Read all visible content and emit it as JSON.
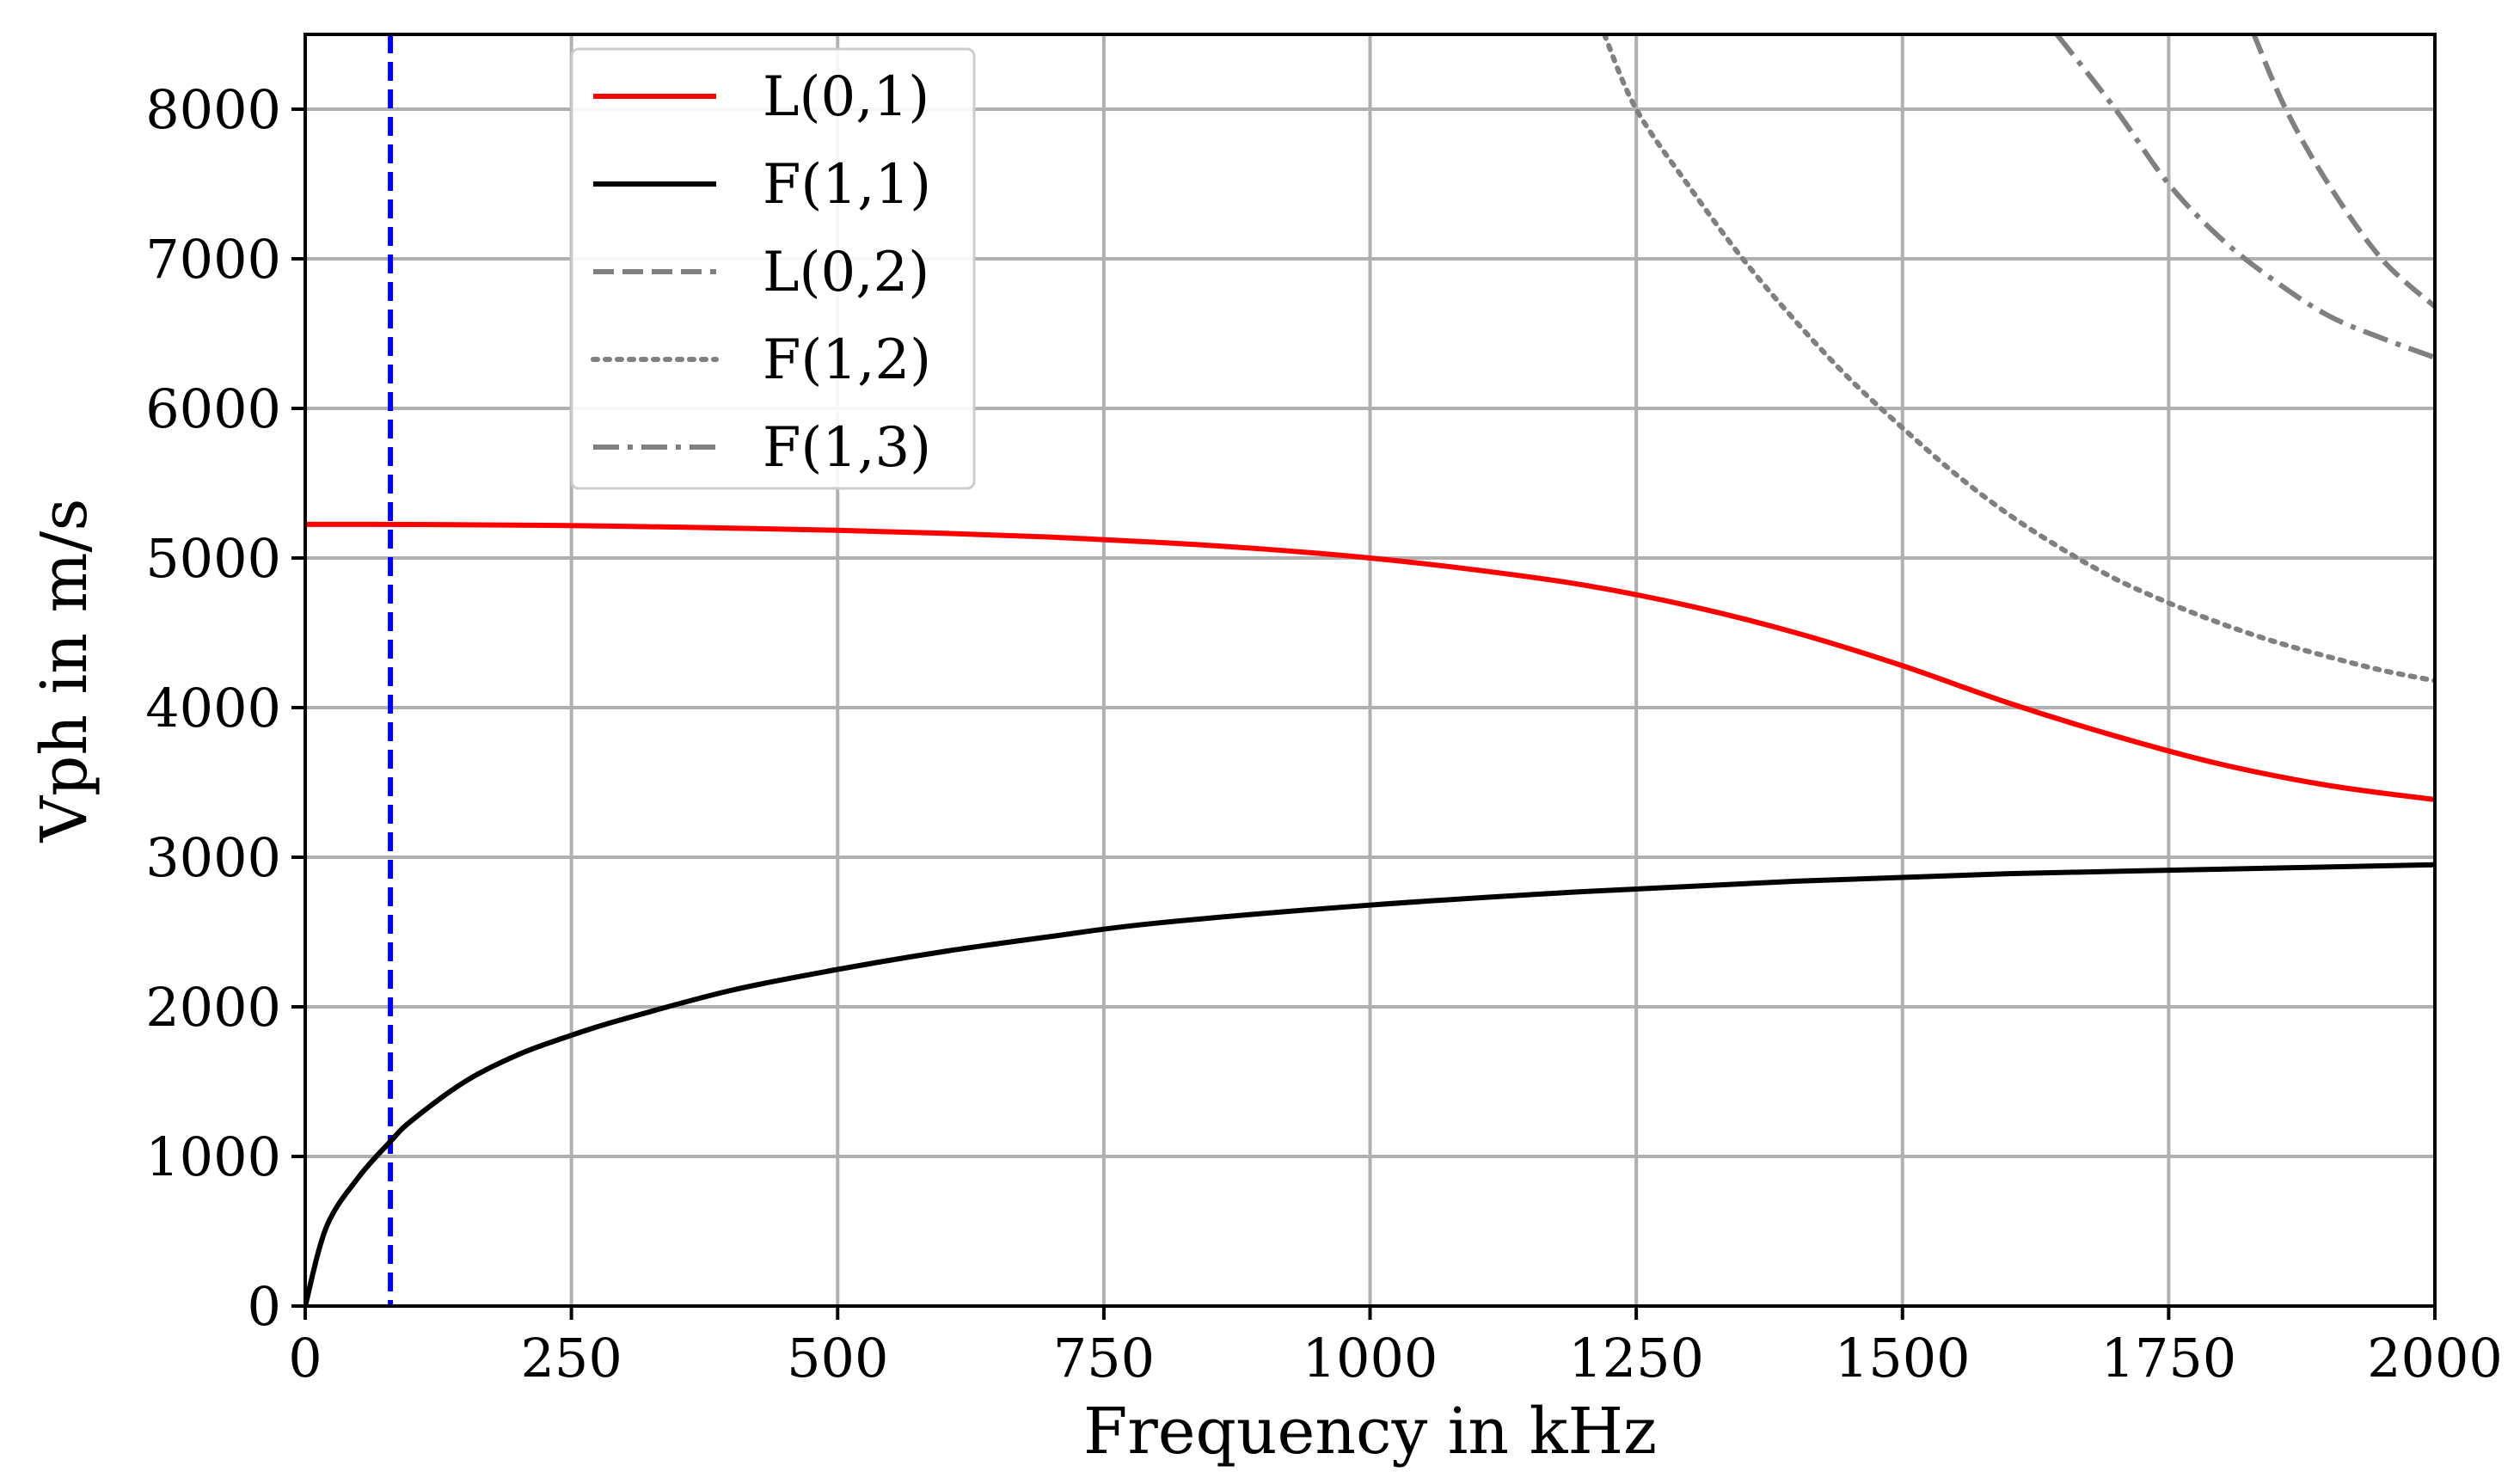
{
  "chart_data": {
    "type": "line",
    "title": "",
    "xlabel": "Frequency in kHz",
    "ylabel": "Vph in m/s",
    "xlim": [
      0,
      2000
    ],
    "ylim": [
      0,
      8500
    ],
    "xticks": [
      0,
      250,
      500,
      750,
      1000,
      1250,
      1500,
      1750,
      2000
    ],
    "yticks": [
      0,
      1000,
      2000,
      3000,
      4000,
      5000,
      6000,
      7000,
      8000
    ],
    "xtick_labels": [
      "0",
      "250",
      "500",
      "750",
      "1000",
      "1250",
      "1500",
      "1750",
      "2000"
    ],
    "ytick_labels": [
      "0",
      "1000",
      "2000",
      "3000",
      "4000",
      "5000",
      "6000",
      "7000",
      "8000"
    ],
    "grid": true,
    "legend_position": "top-left",
    "series": [
      {
        "name": "L(0,1)",
        "color": "#ff0000",
        "style": "solid",
        "x": [
          0,
          100,
          200,
          300,
          400,
          500,
          600,
          700,
          800,
          900,
          1000,
          1100,
          1200,
          1300,
          1400,
          1500,
          1600,
          1700,
          1800,
          1900,
          2000
        ],
        "y": [
          5225,
          5224,
          5220,
          5212,
          5200,
          5185,
          5165,
          5140,
          5105,
          5060,
          5000,
          4920,
          4820,
          4680,
          4500,
          4280,
          4030,
          3810,
          3620,
          3480,
          3385
        ]
      },
      {
        "name": "F(1,1)",
        "color": "#000000",
        "style": "solid",
        "x": [
          0,
          20,
          50,
          80,
          100,
          150,
          200,
          250,
          300,
          400,
          500,
          600,
          700,
          800,
          1000,
          1200,
          1400,
          1600,
          1800,
          2000
        ],
        "y": [
          0,
          530,
          860,
          1100,
          1240,
          1500,
          1680,
          1810,
          1920,
          2110,
          2250,
          2370,
          2470,
          2560,
          2680,
          2770,
          2840,
          2890,
          2920,
          2950
        ]
      },
      {
        "name": "L(0,2)",
        "color": "#808080",
        "style": "dashed",
        "x": [
          1830,
          1860,
          1900,
          1950,
          2000
        ],
        "y": [
          8500,
          8000,
          7500,
          7000,
          6680
        ]
      },
      {
        "name": "F(1,2)",
        "color": "#808080",
        "style": "dotted",
        "x": [
          1220,
          1250,
          1300,
          1350,
          1400,
          1450,
          1500,
          1550,
          1600,
          1650,
          1700,
          1750,
          1800,
          1850,
          1900,
          1950,
          2000
        ],
        "y": [
          8500,
          8000,
          7480,
          7000,
          6580,
          6200,
          5870,
          5560,
          5290,
          5060,
          4860,
          4700,
          4560,
          4440,
          4340,
          4250,
          4180
        ]
      },
      {
        "name": "F(1,3)",
        "color": "#808080",
        "style": "dashdot",
        "x": [
          1645,
          1700,
          1750,
          1800,
          1850,
          1900,
          1950,
          2000
        ],
        "y": [
          8500,
          8000,
          7500,
          7130,
          6850,
          6620,
          6470,
          6340
        ]
      }
    ],
    "annotations": [
      {
        "type": "vertical-line",
        "x": 80,
        "color": "#0000ff",
        "style": "dashed"
      }
    ]
  }
}
